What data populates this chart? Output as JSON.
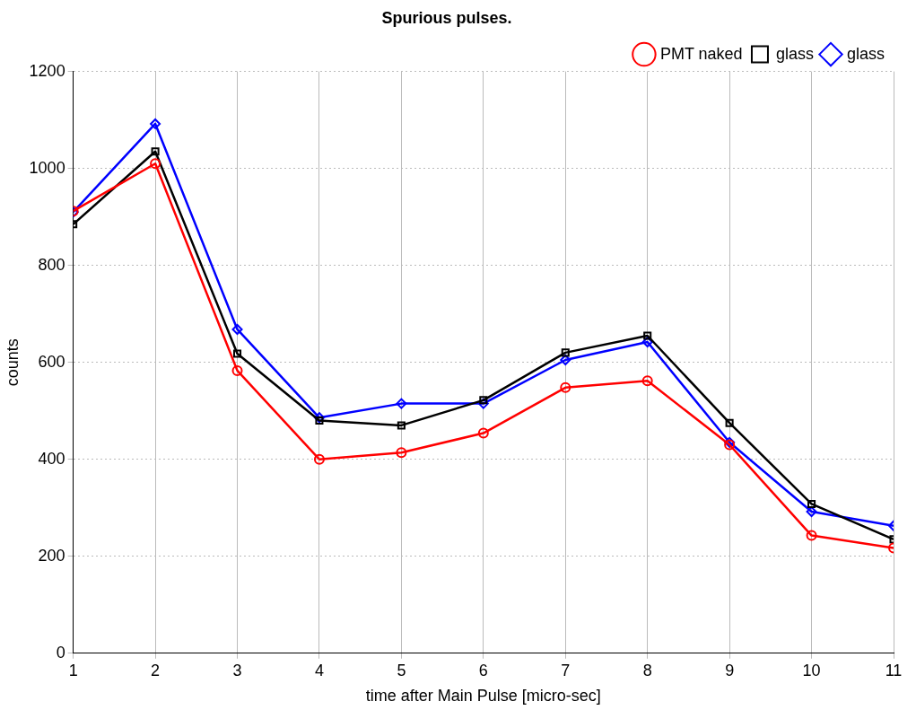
{
  "chart_data": {
    "type": "line",
    "title": "Spurious pulses.",
    "xlabel": "time after Main Pulse [micro-sec]",
    "ylabel": "counts",
    "x": [
      1,
      2,
      3,
      4,
      5,
      6,
      7,
      8,
      9,
      10,
      11
    ],
    "xlim": [
      1,
      11
    ],
    "xticks": [
      1,
      2,
      3,
      4,
      5,
      6,
      7,
      8,
      9,
      10,
      11
    ],
    "ylim": [
      0,
      1200
    ],
    "yticks": [
      0,
      200,
      400,
      600,
      800,
      1000,
      1200
    ],
    "grid": true,
    "legend": "top right",
    "line_style": "solid",
    "series": [
      {
        "name": "PMT naked",
        "color": "#ff0000",
        "marker": "circle",
        "values": [
          912,
          1010,
          583,
          400,
          414,
          454,
          548,
          562,
          430,
          243,
          217
        ]
      },
      {
        "name": "glass",
        "color": "#000000",
        "marker": "square",
        "values": [
          885,
          1035,
          618,
          480,
          470,
          522,
          620,
          655,
          475,
          308,
          235
        ]
      },
      {
        "name": "glass",
        "color": "#0000ff",
        "marker": "diamond",
        "values": [
          910,
          1092,
          668,
          486,
          515,
          515,
          605,
          642,
          435,
          292,
          263
        ]
      }
    ]
  }
}
